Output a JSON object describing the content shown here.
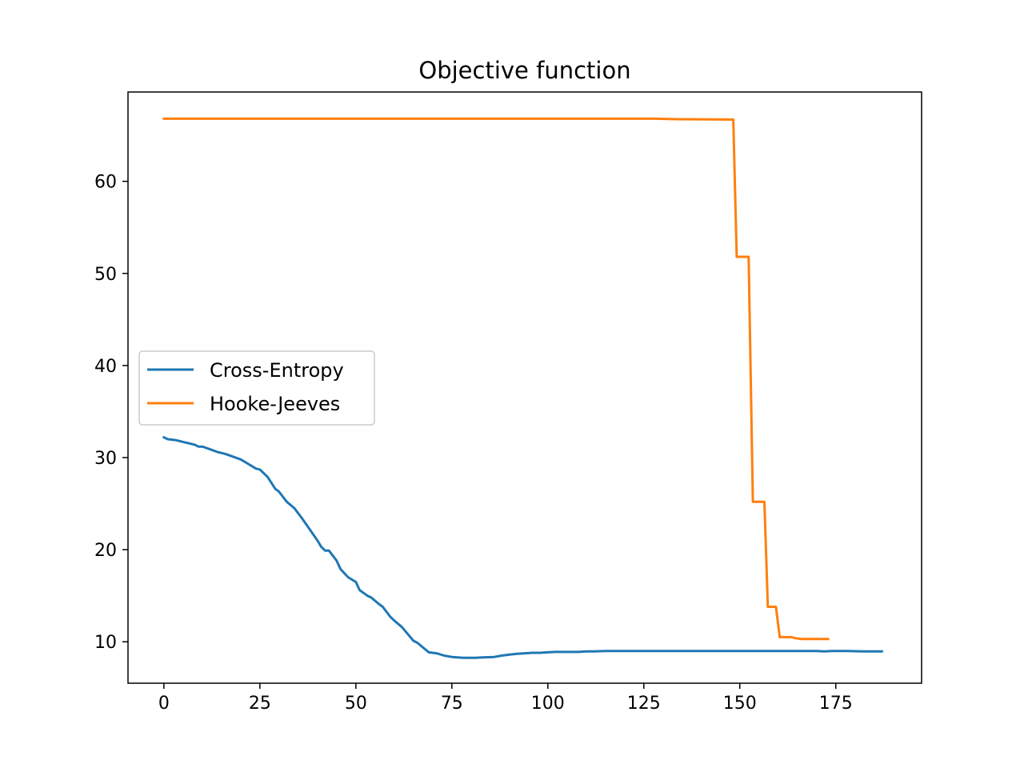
{
  "chart_data": {
    "type": "line",
    "title": "Objective function",
    "xlabel": "",
    "ylabel": "",
    "xlim": [
      -9.35,
      197.35
    ],
    "ylim": [
      5.5,
      69.7
    ],
    "xticks": [
      0,
      25,
      50,
      75,
      100,
      125,
      150,
      175
    ],
    "yticks": [
      10,
      20,
      30,
      40,
      50,
      60
    ],
    "grid": false,
    "legend_position": "center-left",
    "series": [
      {
        "name": "Cross-Entropy",
        "color": "#1f77b4",
        "points": [
          [
            0,
            32.2
          ],
          [
            1,
            32.0
          ],
          [
            3,
            31.9
          ],
          [
            5,
            31.7
          ],
          [
            7,
            31.5
          ],
          [
            8,
            31.4
          ],
          [
            9,
            31.2
          ],
          [
            10,
            31.2
          ],
          [
            12,
            30.9
          ],
          [
            14,
            30.6
          ],
          [
            16,
            30.4
          ],
          [
            18,
            30.1
          ],
          [
            20,
            29.8
          ],
          [
            22,
            29.3
          ],
          [
            24,
            28.8
          ],
          [
            25,
            28.7
          ],
          [
            27,
            27.9
          ],
          [
            29,
            26.6
          ],
          [
            30,
            26.3
          ],
          [
            32,
            25.2
          ],
          [
            34,
            24.5
          ],
          [
            36,
            23.4
          ],
          [
            38,
            22.2
          ],
          [
            40,
            21.0
          ],
          [
            41,
            20.3
          ],
          [
            42,
            19.9
          ],
          [
            43,
            19.9
          ],
          [
            45,
            18.8
          ],
          [
            46,
            17.9
          ],
          [
            48,
            17.0
          ],
          [
            50,
            16.5
          ],
          [
            51,
            15.6
          ],
          [
            53,
            15.0
          ],
          [
            54,
            14.8
          ],
          [
            56,
            14.1
          ],
          [
            57,
            13.8
          ],
          [
            59,
            12.7
          ],
          [
            60,
            12.3
          ],
          [
            62,
            11.6
          ],
          [
            64,
            10.6
          ],
          [
            65,
            10.1
          ],
          [
            66,
            9.9
          ],
          [
            68,
            9.2
          ],
          [
            69,
            8.85
          ],
          [
            71,
            8.75
          ],
          [
            73,
            8.5
          ],
          [
            75,
            8.35
          ],
          [
            78,
            8.25
          ],
          [
            81,
            8.25
          ],
          [
            83,
            8.3
          ],
          [
            86,
            8.35
          ],
          [
            88,
            8.5
          ],
          [
            90,
            8.6
          ],
          [
            92,
            8.7
          ],
          [
            94,
            8.75
          ],
          [
            96,
            8.8
          ],
          [
            98,
            8.8
          ],
          [
            100,
            8.85
          ],
          [
            102,
            8.9
          ],
          [
            104,
            8.9
          ],
          [
            106,
            8.9
          ],
          [
            108,
            8.9
          ],
          [
            110,
            8.95
          ],
          [
            112,
            8.95
          ],
          [
            115,
            9.0
          ],
          [
            118,
            9.0
          ],
          [
            122,
            9.0
          ],
          [
            126,
            9.0
          ],
          [
            130,
            9.0
          ],
          [
            133,
            9.0
          ],
          [
            136,
            9.0
          ],
          [
            140,
            9.0
          ],
          [
            145,
            9.0
          ],
          [
            150,
            9.0
          ],
          [
            155,
            9.0
          ],
          [
            160,
            9.0
          ],
          [
            165,
            9.0
          ],
          [
            170,
            9.0
          ],
          [
            172,
            8.95
          ],
          [
            174,
            9.0
          ],
          [
            178,
            9.0
          ],
          [
            182,
            8.95
          ],
          [
            184,
            8.95
          ],
          [
            187,
            8.95
          ]
        ]
      },
      {
        "name": "Hooke-Jeeves",
        "color": "#ff7f0e",
        "points": [
          [
            0,
            66.8
          ],
          [
            50,
            66.8
          ],
          [
            100,
            66.8
          ],
          [
            128,
            66.8
          ],
          [
            134,
            66.75
          ],
          [
            148.3,
            66.7
          ],
          [
            149.2,
            51.8
          ],
          [
            152.3,
            51.8
          ],
          [
            153.4,
            25.2
          ],
          [
            156.4,
            25.2
          ],
          [
            157.3,
            13.8
          ],
          [
            159.4,
            13.8
          ],
          [
            160.4,
            10.5
          ],
          [
            163.4,
            10.5
          ],
          [
            164.3,
            10.4
          ],
          [
            166,
            10.3
          ],
          [
            173,
            10.3
          ]
        ]
      }
    ]
  }
}
